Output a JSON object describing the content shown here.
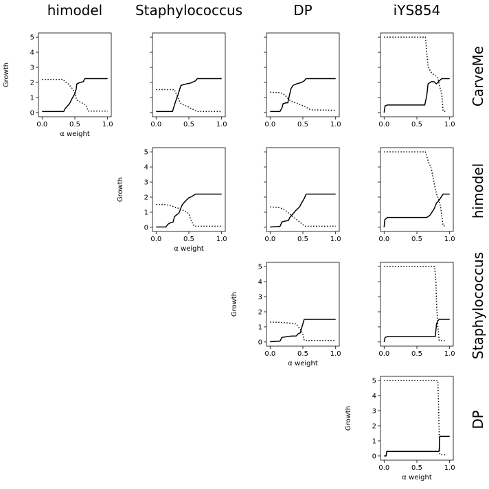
{
  "figure": {
    "columns": [
      "himodel",
      "Staphylococcus",
      "DP",
      "iYS854"
    ],
    "rows": [
      "CarveMe",
      "himodel",
      "Staphylococcus",
      "DP"
    ]
  },
  "chart_data": {
    "type": "line",
    "xlim": [
      0,
      1
    ],
    "ylim": [
      0,
      5
    ],
    "x_ticks": [
      "0.0",
      "0.5",
      "1.0"
    ],
    "y_ticks": [
      "0",
      "1",
      "2",
      "3",
      "4",
      "5"
    ],
    "xlabel": "α weight",
    "ylabel": "Growth",
    "grid": false,
    "legend": "none",
    "line_styles": {
      "solid": "#000000",
      "dotted": "#000000"
    },
    "panels": [
      {
        "id": "carveme-himodel",
        "row": 0,
        "col": 0,
        "show_xlabel": true,
        "show_ylabel": true,
        "show_yticklabels": true,
        "solid": [
          [
            0,
            0.07
          ],
          [
            0.33,
            0.07
          ],
          [
            0.35,
            0.25
          ],
          [
            0.38,
            0.4
          ],
          [
            0.42,
            0.6
          ],
          [
            0.46,
            0.95
          ],
          [
            0.5,
            1.25
          ],
          [
            0.52,
            1.55
          ],
          [
            0.53,
            1.9
          ],
          [
            0.58,
            2.0
          ],
          [
            0.63,
            2.05
          ],
          [
            0.65,
            2.25
          ],
          [
            1.0,
            2.25
          ]
        ],
        "dotted": [
          [
            0,
            2.2
          ],
          [
            0.32,
            2.2
          ],
          [
            0.35,
            2.05
          ],
          [
            0.4,
            1.9
          ],
          [
            0.46,
            1.6
          ],
          [
            0.5,
            1.3
          ],
          [
            0.52,
            0.95
          ],
          [
            0.55,
            0.75
          ],
          [
            0.6,
            0.65
          ],
          [
            0.65,
            0.55
          ],
          [
            0.68,
            0.4
          ],
          [
            0.7,
            0.1
          ],
          [
            1.0,
            0.1
          ]
        ]
      },
      {
        "id": "carveme-staphylococcus",
        "row": 0,
        "col": 1,
        "show_xlabel": false,
        "show_ylabel": false,
        "show_yticklabels": false,
        "solid": [
          [
            0,
            0.07
          ],
          [
            0.25,
            0.07
          ],
          [
            0.28,
            0.5
          ],
          [
            0.31,
            0.9
          ],
          [
            0.34,
            1.25
          ],
          [
            0.36,
            1.55
          ],
          [
            0.38,
            1.8
          ],
          [
            0.42,
            1.85
          ],
          [
            0.46,
            1.9
          ],
          [
            0.52,
            1.95
          ],
          [
            0.55,
            2.0
          ],
          [
            0.6,
            2.1
          ],
          [
            0.63,
            2.25
          ],
          [
            1.0,
            2.25
          ]
        ],
        "dotted": [
          [
            0,
            1.52
          ],
          [
            0.28,
            1.52
          ],
          [
            0.3,
            1.3
          ],
          [
            0.32,
            1.1
          ],
          [
            0.35,
            0.8
          ],
          [
            0.38,
            0.6
          ],
          [
            0.42,
            0.5
          ],
          [
            0.48,
            0.4
          ],
          [
            0.52,
            0.3
          ],
          [
            0.58,
            0.18
          ],
          [
            0.62,
            0.07
          ],
          [
            1.0,
            0.07
          ]
        ]
      },
      {
        "id": "carveme-dp",
        "row": 0,
        "col": 2,
        "show_xlabel": false,
        "show_ylabel": false,
        "show_yticklabels": false,
        "solid": [
          [
            0,
            0.07
          ],
          [
            0.15,
            0.07
          ],
          [
            0.18,
            0.3
          ],
          [
            0.2,
            0.6
          ],
          [
            0.25,
            0.65
          ],
          [
            0.27,
            0.65
          ],
          [
            0.29,
            1.05
          ],
          [
            0.32,
            1.6
          ],
          [
            0.35,
            1.8
          ],
          [
            0.4,
            1.9
          ],
          [
            0.48,
            2.0
          ],
          [
            0.52,
            2.1
          ],
          [
            0.55,
            2.25
          ],
          [
            1.0,
            2.25
          ]
        ],
        "dotted": [
          [
            0,
            1.35
          ],
          [
            0.15,
            1.32
          ],
          [
            0.2,
            1.25
          ],
          [
            0.25,
            1.05
          ],
          [
            0.28,
            0.9
          ],
          [
            0.32,
            0.75
          ],
          [
            0.38,
            0.65
          ],
          [
            0.45,
            0.55
          ],
          [
            0.5,
            0.45
          ],
          [
            0.55,
            0.35
          ],
          [
            0.62,
            0.18
          ],
          [
            1.0,
            0.15
          ]
        ]
      },
      {
        "id": "carveme-iys854",
        "row": 0,
        "col": 3,
        "show_xlabel": false,
        "show_ylabel": false,
        "show_yticklabels": false,
        "solid": [
          [
            0,
            0.0
          ],
          [
            0.015,
            0.45
          ],
          [
            0.05,
            0.5
          ],
          [
            0.62,
            0.5
          ],
          [
            0.65,
            1.1
          ],
          [
            0.67,
            1.9
          ],
          [
            0.72,
            2.05
          ],
          [
            0.76,
            2.05
          ],
          [
            0.8,
            1.9
          ],
          [
            0.84,
            2.1
          ],
          [
            0.88,
            2.25
          ],
          [
            1.0,
            2.25
          ]
        ],
        "dotted": [
          [
            0,
            5.0
          ],
          [
            0.63,
            5.0
          ],
          [
            0.65,
            4.0
          ],
          [
            0.67,
            3.1
          ],
          [
            0.7,
            2.8
          ],
          [
            0.73,
            2.6
          ],
          [
            0.78,
            2.45
          ],
          [
            0.82,
            2.3
          ],
          [
            0.85,
            1.7
          ],
          [
            0.88,
            1.2
          ],
          [
            0.9,
            0.1
          ],
          [
            0.95,
            0.07
          ]
        ]
      },
      {
        "id": "himodel-staphylococcus",
        "row": 1,
        "col": 1,
        "show_xlabel": true,
        "show_ylabel": true,
        "show_yticklabels": true,
        "solid": [
          [
            0,
            0.02
          ],
          [
            0.15,
            0.02
          ],
          [
            0.18,
            0.2
          ],
          [
            0.22,
            0.3
          ],
          [
            0.26,
            0.35
          ],
          [
            0.28,
            0.7
          ],
          [
            0.32,
            0.85
          ],
          [
            0.35,
            0.95
          ],
          [
            0.38,
            1.3
          ],
          [
            0.4,
            1.5
          ],
          [
            0.45,
            1.75
          ],
          [
            0.5,
            1.95
          ],
          [
            0.55,
            2.05
          ],
          [
            0.6,
            2.2
          ],
          [
            1.0,
            2.2
          ]
        ],
        "dotted": [
          [
            0,
            1.52
          ],
          [
            0.15,
            1.5
          ],
          [
            0.2,
            1.45
          ],
          [
            0.25,
            1.4
          ],
          [
            0.3,
            1.3
          ],
          [
            0.35,
            1.25
          ],
          [
            0.4,
            1.15
          ],
          [
            0.45,
            1.05
          ],
          [
            0.5,
            0.9
          ],
          [
            0.53,
            0.5
          ],
          [
            0.58,
            0.07
          ],
          [
            1.0,
            0.07
          ]
        ]
      },
      {
        "id": "himodel-dp",
        "row": 1,
        "col": 2,
        "show_xlabel": false,
        "show_ylabel": false,
        "show_yticklabels": false,
        "solid": [
          [
            0,
            0.02
          ],
          [
            0.15,
            0.05
          ],
          [
            0.18,
            0.35
          ],
          [
            0.22,
            0.4
          ],
          [
            0.28,
            0.45
          ],
          [
            0.3,
            0.65
          ],
          [
            0.35,
            0.9
          ],
          [
            0.4,
            1.15
          ],
          [
            0.45,
            1.35
          ],
          [
            0.48,
            1.6
          ],
          [
            0.52,
            1.9
          ],
          [
            0.55,
            2.2
          ],
          [
            1.0,
            2.2
          ]
        ],
        "dotted": [
          [
            0,
            1.35
          ],
          [
            0.15,
            1.3
          ],
          [
            0.2,
            1.2
          ],
          [
            0.25,
            1.05
          ],
          [
            0.28,
            0.95
          ],
          [
            0.3,
            0.9
          ],
          [
            0.33,
            0.75
          ],
          [
            0.38,
            0.6
          ],
          [
            0.42,
            0.45
          ],
          [
            0.48,
            0.25
          ],
          [
            0.53,
            0.07
          ],
          [
            1.0,
            0.07
          ]
        ]
      },
      {
        "id": "himodel-iys854",
        "row": 1,
        "col": 3,
        "show_xlabel": false,
        "show_ylabel": false,
        "show_yticklabels": false,
        "solid": [
          [
            0,
            0.0
          ],
          [
            0.01,
            0.5
          ],
          [
            0.05,
            0.65
          ],
          [
            0.65,
            0.65
          ],
          [
            0.7,
            0.8
          ],
          [
            0.73,
            1.0
          ],
          [
            0.76,
            1.2
          ],
          [
            0.8,
            1.6
          ],
          [
            0.84,
            1.8
          ],
          [
            0.87,
            2.0
          ],
          [
            0.9,
            2.2
          ],
          [
            1.0,
            2.2
          ]
        ],
        "dotted": [
          [
            0,
            5.0
          ],
          [
            0.63,
            5.0
          ],
          [
            0.65,
            4.7
          ],
          [
            0.68,
            4.3
          ],
          [
            0.72,
            3.9
          ],
          [
            0.75,
            3.2
          ],
          [
            0.78,
            2.6
          ],
          [
            0.8,
            2.2
          ],
          [
            0.83,
            1.9
          ],
          [
            0.86,
            1.4
          ],
          [
            0.9,
            0.1
          ],
          [
            0.95,
            0.07
          ]
        ]
      },
      {
        "id": "staphylococcus-dp",
        "row": 2,
        "col": 2,
        "show_xlabel": true,
        "show_ylabel": true,
        "show_yticklabels": true,
        "solid": [
          [
            0,
            0.02
          ],
          [
            0.15,
            0.05
          ],
          [
            0.18,
            0.3
          ],
          [
            0.25,
            0.35
          ],
          [
            0.3,
            0.38
          ],
          [
            0.4,
            0.4
          ],
          [
            0.43,
            0.55
          ],
          [
            0.46,
            0.6
          ],
          [
            0.5,
            1.2
          ],
          [
            0.52,
            1.5
          ],
          [
            1.0,
            1.5
          ]
        ],
        "dotted": [
          [
            0,
            1.32
          ],
          [
            0.15,
            1.3
          ],
          [
            0.3,
            1.25
          ],
          [
            0.4,
            1.2
          ],
          [
            0.43,
            1.0
          ],
          [
            0.46,
            0.9
          ],
          [
            0.5,
            0.5
          ],
          [
            0.52,
            0.1
          ],
          [
            1.0,
            0.1
          ]
        ]
      },
      {
        "id": "staphylococcus-iys854",
        "row": 2,
        "col": 3,
        "show_xlabel": false,
        "show_ylabel": false,
        "show_yticklabels": false,
        "solid": [
          [
            0,
            0.0
          ],
          [
            0.015,
            0.3
          ],
          [
            0.05,
            0.35
          ],
          [
            0.78,
            0.35
          ],
          [
            0.8,
            1.2
          ],
          [
            0.82,
            1.4
          ],
          [
            0.84,
            1.5
          ],
          [
            1.0,
            1.5
          ]
        ],
        "dotted": [
          [
            0,
            5.0
          ],
          [
            0.77,
            5.0
          ],
          [
            0.79,
            4.0
          ],
          [
            0.8,
            2.5
          ],
          [
            0.82,
            1.0
          ],
          [
            0.84,
            0.1
          ],
          [
            0.95,
            0.07
          ]
        ]
      },
      {
        "id": "dp-iys854",
        "row": 3,
        "col": 3,
        "show_xlabel": true,
        "show_ylabel": true,
        "show_yticklabels": true,
        "solid": [
          [
            0,
            0.0
          ],
          [
            0.03,
            0.0
          ],
          [
            0.04,
            0.3
          ],
          [
            0.83,
            0.3
          ],
          [
            0.84,
            0.35
          ],
          [
            0.85,
            1.3
          ],
          [
            1.0,
            1.3
          ]
        ],
        "dotted": [
          [
            0,
            5.0
          ],
          [
            0.82,
            5.0
          ],
          [
            0.83,
            3.5
          ],
          [
            0.84,
            1.5
          ],
          [
            0.85,
            0.1
          ],
          [
            0.95,
            0.07
          ]
        ]
      }
    ]
  }
}
